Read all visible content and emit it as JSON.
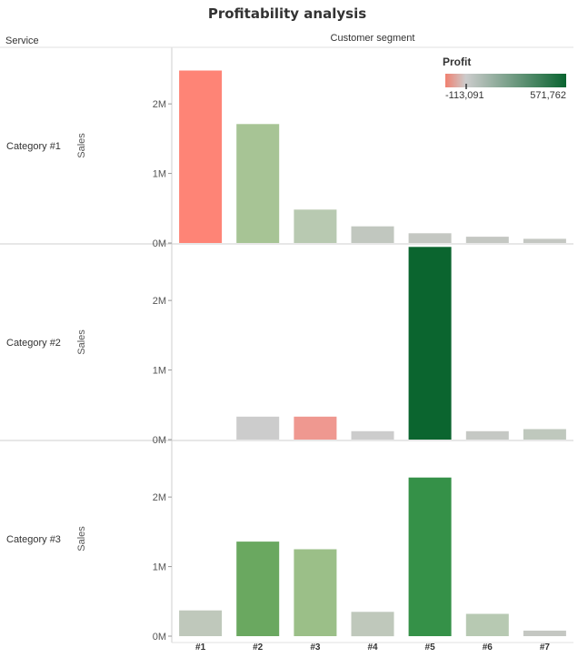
{
  "chart_data": {
    "type": "bar",
    "title": "Profitability analysis",
    "row_header": "Service",
    "column_header": "Customer segment",
    "ylabel": "Sales",
    "ylim": [
      0,
      2800000
    ],
    "yticks": [
      0,
      1000000,
      2000000
    ],
    "ytick_labels": [
      "0M",
      "1M",
      "2M"
    ],
    "categories": [
      "#1",
      "#2",
      "#3",
      "#4",
      "#5",
      "#6",
      "#7"
    ],
    "color_legend": {
      "title": "Profit",
      "min_label": "-113,091",
      "max_label": "571,762",
      "colors": [
        "#f08070",
        "#cccccc",
        "#0a6430"
      ]
    },
    "panels": [
      {
        "name": "Category #1",
        "sales": [
          2480000,
          1710000,
          480000,
          240000,
          140000,
          90000,
          60000
        ],
        "colors": [
          "#fe8476",
          "#a7c495",
          "#b8c9b1",
          "#c1c7bf",
          "#c4c7c2",
          "#c4c7c2",
          "#c4c7c2"
        ]
      },
      {
        "name": "Category #2",
        "sales": [
          0,
          330000,
          330000,
          120000,
          2770000,
          120000,
          150000
        ],
        "colors": [
          "#ffffff",
          "#cccccc",
          "#ef9890",
          "#cccccc",
          "#0b652f",
          "#c5c8c4",
          "#bfc8bd"
        ]
      },
      {
        "name": "Category #3",
        "sales": [
          370000,
          1360000,
          1250000,
          350000,
          2280000,
          320000,
          80000
        ],
        "colors": [
          "#bfc8bb",
          "#6aa860",
          "#9bbf88",
          "#bfc8bb",
          "#359148",
          "#b7c9b2",
          "#c4c7c2"
        ]
      }
    ]
  }
}
